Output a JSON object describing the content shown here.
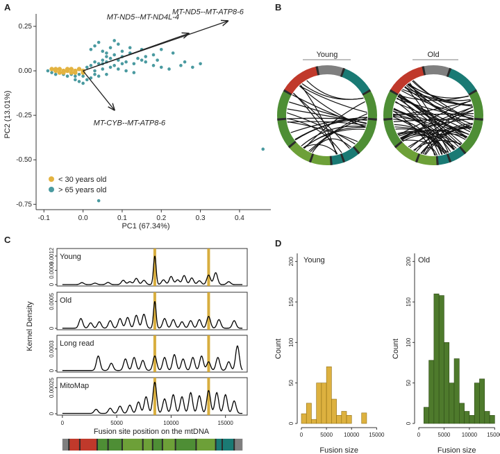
{
  "colors": {
    "young": "#E3B341",
    "old": "#4A9AA0",
    "hist_young": "#DDB13F",
    "hist_old": "#4E7A2C",
    "hist_young_edge": "#8F6E14",
    "hist_old_edge": "#2E4A16",
    "circle_red": "#C0392B",
    "circle_grey": "#7F7F7F",
    "circle_teal": "#1A7A74",
    "circle_green": "#4E8E35",
    "circle_green_light": "#6DA038",
    "circle_black": "#2B2B2B",
    "highlight": "#D4A52A"
  },
  "panels": [
    {
      "id": "A",
      "label": "A"
    },
    {
      "id": "B",
      "label": "B"
    },
    {
      "id": "C",
      "label": "C"
    },
    {
      "id": "D",
      "label": "D"
    }
  ],
  "chart_data": [
    {
      "panel": "A",
      "type": "scatter",
      "xlabel": "PC1 (67.34%)",
      "ylabel": "PC2 (13.01%)",
      "xlim": [
        -0.12,
        0.48
      ],
      "ylim": [
        -0.78,
        0.32
      ],
      "xticks": [
        -0.1,
        0.0,
        0.1,
        0.2,
        0.3,
        0.4
      ],
      "xtick_labels": [
        "-0.1",
        "0.0",
        "0.1",
        "0.2",
        "0.3",
        "0.4"
      ],
      "yticks": [
        0.25,
        0.0,
        -0.25,
        -0.5,
        -0.75
      ],
      "ytick_labels": [
        "0.25",
        "0.00",
        "-0.25",
        "-0.50",
        "-0.75"
      ],
      "legend": [
        {
          "label": "< 30 years old",
          "color": "#E3B341"
        },
        {
          "label": "> 65 years old",
          "color": "#4A9AA0"
        }
      ],
      "loadings": [
        {
          "label": "MT-ND5--MT-ND4L-4",
          "x": 0.27,
          "y": 0.21
        },
        {
          "label": "MT-ND5--MT-ATP8-6",
          "x": 0.37,
          "y": 0.28
        },
        {
          "label": "MT-CYB--MT-ATP8-6",
          "x": 0.08,
          "y": -0.22
        }
      ],
      "series": [
        {
          "name": "< 30 years old",
          "points": [
            [
              -0.08,
              0.01
            ],
            [
              -0.07,
              0.0
            ],
            [
              -0.06,
              0.01
            ],
            [
              -0.05,
              -0.01
            ],
            [
              -0.04,
              0.0
            ],
            [
              -0.03,
              0.01
            ],
            [
              -0.02,
              -0.01
            ],
            [
              -0.05,
              0.0
            ],
            [
              -0.06,
              -0.01
            ],
            [
              -0.04,
              0.01
            ],
            [
              0.0,
              0.0
            ],
            [
              0.0,
              -0.01
            ],
            [
              -0.01,
              0.01
            ],
            [
              -0.07,
              0.01
            ],
            [
              -0.02,
              0.0
            ],
            [
              -0.03,
              -0.01
            ]
          ]
        },
        {
          "name": "> 65 years old",
          "points": [
            [
              -0.09,
              0.0
            ],
            [
              -0.08,
              -0.01
            ],
            [
              -0.07,
              -0.02
            ],
            [
              -0.06,
              -0.01
            ],
            [
              -0.05,
              -0.02
            ],
            [
              -0.04,
              -0.03
            ],
            [
              -0.03,
              -0.02
            ],
            [
              -0.02,
              -0.03
            ],
            [
              -0.01,
              -0.02
            ],
            [
              0.0,
              -0.03
            ],
            [
              0.01,
              0.02
            ],
            [
              0.02,
              0.03
            ],
            [
              0.03,
              0.05
            ],
            [
              0.04,
              0.04
            ],
            [
              0.05,
              0.06
            ],
            [
              0.06,
              0.05
            ],
            [
              0.07,
              0.07
            ],
            [
              0.08,
              0.09
            ],
            [
              0.09,
              0.06
            ],
            [
              0.1,
              0.08
            ],
            [
              0.11,
              0.05
            ],
            [
              0.12,
              0.1
            ],
            [
              0.13,
              0.04
            ],
            [
              0.14,
              0.07
            ],
            [
              0.15,
              0.06
            ],
            [
              0.16,
              0.05
            ],
            [
              0.18,
              0.03
            ],
            [
              0.2,
              0.02
            ],
            [
              0.22,
              0.01
            ],
            [
              0.25,
              0.03
            ],
            [
              0.28,
              0.02
            ],
            [
              0.02,
              0.12
            ],
            [
              0.03,
              0.14
            ],
            [
              0.05,
              0.11
            ],
            [
              0.06,
              0.1
            ],
            [
              0.07,
              0.13
            ],
            [
              0.09,
              0.15
            ],
            [
              0.04,
              0.16
            ],
            [
              0.08,
              0.17
            ],
            [
              0.12,
              0.13
            ],
            [
              0.1,
              0.11
            ],
            [
              0.15,
              0.12
            ],
            [
              0.18,
              0.09
            ],
            [
              0.2,
              0.12
            ],
            [
              0.23,
              0.1
            ],
            [
              0.26,
              0.05
            ],
            [
              0.03,
              0.0
            ],
            [
              0.05,
              0.01
            ],
            [
              0.07,
              0.02
            ],
            [
              0.09,
              0.01
            ],
            [
              0.11,
              0.0
            ],
            [
              0.13,
              -0.01
            ],
            [
              0.06,
              -0.02
            ],
            [
              0.02,
              -0.04
            ],
            [
              0.01,
              -0.05
            ],
            [
              -0.01,
              -0.06
            ],
            [
              0.0,
              -0.07
            ],
            [
              0.03,
              -0.02
            ],
            [
              -0.02,
              -0.05
            ],
            [
              0.04,
              -0.03
            ],
            [
              0.08,
              0.03
            ],
            [
              0.1,
              0.04
            ],
            [
              0.06,
              0.08
            ],
            [
              0.05,
              0.04
            ],
            [
              0.16,
              0.08
            ],
            [
              0.19,
              0.06
            ],
            [
              0.3,
              0.04
            ],
            [
              0.04,
              -0.73
            ],
            [
              0.46,
              -0.44
            ]
          ]
        }
      ]
    },
    {
      "panel": "B",
      "type": "chord",
      "circles": [
        {
          "title": "Young",
          "n_links": 26
        },
        {
          "title": "Old",
          "n_links": 60
        }
      ],
      "segments": [
        {
          "name": "red",
          "start": 300,
          "end": 348,
          "color": "#C0392B"
        },
        {
          "name": "grey",
          "start": 348,
          "end": 20,
          "color": "#7F7F7F"
        },
        {
          "name": "teal-top",
          "start": 20,
          "end": 60,
          "color": "#1A7A74"
        },
        {
          "name": "green-right",
          "start": 60,
          "end": 140,
          "color": "#4E8E35"
        },
        {
          "name": "teal-bottom",
          "start": 140,
          "end": 175,
          "color": "#1A7A74"
        },
        {
          "name": "green-bottom",
          "start": 175,
          "end": 230,
          "color": "#6DA038"
        },
        {
          "name": "green-left",
          "start": 230,
          "end": 300,
          "color": "#4E8E35"
        }
      ]
    },
    {
      "panel": "C",
      "type": "line",
      "ylabel": "Kernel Density",
      "xlabel": "Fusion site position on the mtDNA",
      "xlim": [
        -500,
        17000
      ],
      "xticks": [
        0,
        5000,
        10000,
        15000
      ],
      "xtick_labels": [
        "0",
        "5000",
        "10000",
        "15000"
      ],
      "highlights": [
        8500,
        13450
      ],
      "series": [
        {
          "name": "Young",
          "ymax": 0.0014,
          "yticks": [
            0,
            0.0006,
            0.0012
          ],
          "ytick_labels": [
            "0",
            "0.0006",
            "0.0012"
          ],
          "peaks": [
            [
              1800,
              8e-05
            ],
            [
              3000,
              6e-05
            ],
            [
              4200,
              9e-05
            ],
            [
              5600,
              0.00018
            ],
            [
              6200,
              0.00012
            ],
            [
              6800,
              0.00026
            ],
            [
              7500,
              0.00018
            ],
            [
              8500,
              0.0012
            ],
            [
              9300,
              0.0002
            ],
            [
              10000,
              0.00034
            ],
            [
              10600,
              0.0002
            ],
            [
              11200,
              0.00038
            ],
            [
              11900,
              0.00028
            ],
            [
              12600,
              0.00016
            ],
            [
              13450,
              0.0004
            ],
            [
              14100,
              0.0005
            ],
            [
              15300,
              0.00012
            ]
          ]
        },
        {
          "name": "Old",
          "ymax": 0.00062,
          "yticks": [
            0,
            0.0005
          ],
          "ytick_labels": [
            "0",
            "0.0005"
          ],
          "peaks": [
            [
              1700,
              0.00018
            ],
            [
              2600,
              0.0001
            ],
            [
              3400,
              0.00012
            ],
            [
              4400,
              0.00014
            ],
            [
              5300,
              0.00018
            ],
            [
              6000,
              0.0002
            ],
            [
              6800,
              0.00024
            ],
            [
              7500,
              0.00026
            ],
            [
              8500,
              0.0005
            ],
            [
              9400,
              0.00018
            ],
            [
              10200,
              0.00016
            ],
            [
              11000,
              0.00012
            ],
            [
              11800,
              0.00014
            ],
            [
              12600,
              0.00016
            ],
            [
              13450,
              0.00022
            ],
            [
              14400,
              0.00016
            ],
            [
              15800,
              0.00014
            ]
          ]
        },
        {
          "name": "Long read",
          "ymax": 0.00045,
          "yticks": [
            0,
            0.0003
          ],
          "ytick_labels": [
            "0",
            "0.0003"
          ],
          "peaks": [
            [
              3300,
              0.0002
            ],
            [
              4500,
              0.0001
            ],
            [
              5800,
              0.00016
            ],
            [
              6600,
              0.00018
            ],
            [
              7400,
              0.00014
            ],
            [
              8500,
              0.0002
            ],
            [
              9400,
              0.00018
            ],
            [
              10300,
              0.00022
            ],
            [
              11100,
              0.00016
            ],
            [
              12000,
              0.00018
            ],
            [
              12800,
              0.0002
            ],
            [
              13450,
              0.00012
            ],
            [
              14300,
              0.00018
            ],
            [
              15300,
              0.00012
            ],
            [
              16100,
              0.00034
            ]
          ]
        },
        {
          "name": "MitoMap",
          "ymax": 0.00032,
          "yticks": [
            0,
            0.00025
          ],
          "ytick_labels": [
            "0",
            "0.00025"
          ],
          "peaks": [
            [
              3100,
              4e-05
            ],
            [
              4400,
              5e-05
            ],
            [
              5300,
              7e-05
            ],
            [
              6200,
              8e-05
            ],
            [
              7000,
              0.00011
            ],
            [
              7700,
              0.00016
            ],
            [
              8500,
              0.0003
            ],
            [
              9400,
              0.00014
            ],
            [
              10200,
              0.00018
            ],
            [
              11000,
              0.00016
            ],
            [
              11800,
              0.0002
            ],
            [
              12600,
              0.00017
            ],
            [
              13450,
              0.00022
            ],
            [
              14200,
              0.0002
            ],
            [
              15000,
              0.00018
            ],
            [
              15800,
              0.00012
            ]
          ]
        }
      ],
      "genome_bar": [
        {
          "from": 0,
          "to": 600,
          "color": "#7F7F7F"
        },
        {
          "from": 600,
          "to": 1600,
          "color": "#C0392B"
        },
        {
          "from": 1600,
          "to": 3200,
          "color": "#C0392B"
        },
        {
          "from": 3200,
          "to": 4200,
          "color": "#4E8E35"
        },
        {
          "from": 4200,
          "to": 5500,
          "color": "#4E8E35"
        },
        {
          "from": 5500,
          "to": 7400,
          "color": "#6DA038"
        },
        {
          "from": 7400,
          "to": 8300,
          "color": "#6DA038"
        },
        {
          "from": 8300,
          "to": 9200,
          "color": "#4E8E35"
        },
        {
          "from": 9200,
          "to": 10400,
          "color": "#6DA038"
        },
        {
          "from": 10400,
          "to": 12300,
          "color": "#4E8E35"
        },
        {
          "from": 12300,
          "to": 14100,
          "color": "#6DA038"
        },
        {
          "from": 14100,
          "to": 15800,
          "color": "#1A7A74"
        },
        {
          "from": 15800,
          "to": 16569,
          "color": "#7F7F7F"
        }
      ],
      "genome_ticks": [
        600,
        1600,
        3200,
        4200,
        5500,
        7400,
        8300,
        9200,
        10400,
        12300,
        14100,
        14700,
        15800
      ]
    },
    {
      "panel": "D",
      "type": "bar",
      "ylabel": "Count",
      "xlabel": "Fusion size",
      "xticks": [
        0,
        5000,
        10000,
        15000
      ],
      "xtick_labels": [
        "0",
        "5000",
        "10000",
        "15000"
      ],
      "bin_width": 1000,
      "series": [
        {
          "name": "Young",
          "color": "#DDB13F",
          "ylim": [
            0,
            210
          ],
          "yticks": [
            0,
            50,
            100,
            150,
            200
          ],
          "ytick_labels": [
            "0",
            "50",
            "100",
            "150",
            "200"
          ],
          "bins_start": 0,
          "values": [
            12,
            25,
            5,
            50,
            50,
            70,
            30,
            10,
            15,
            10,
            0,
            0,
            13
          ]
        },
        {
          "name": "Old",
          "color": "#4E7A2C",
          "ylim": [
            0,
            210
          ],
          "yticks": [
            0,
            50,
            100,
            150,
            200
          ],
          "ytick_labels": [
            "0",
            "50",
            "100",
            "150",
            "200"
          ],
          "bins_start": 1000,
          "values": [
            20,
            78,
            160,
            158,
            100,
            50,
            80,
            25,
            15,
            10,
            50,
            55,
            15,
            10
          ]
        }
      ]
    }
  ]
}
